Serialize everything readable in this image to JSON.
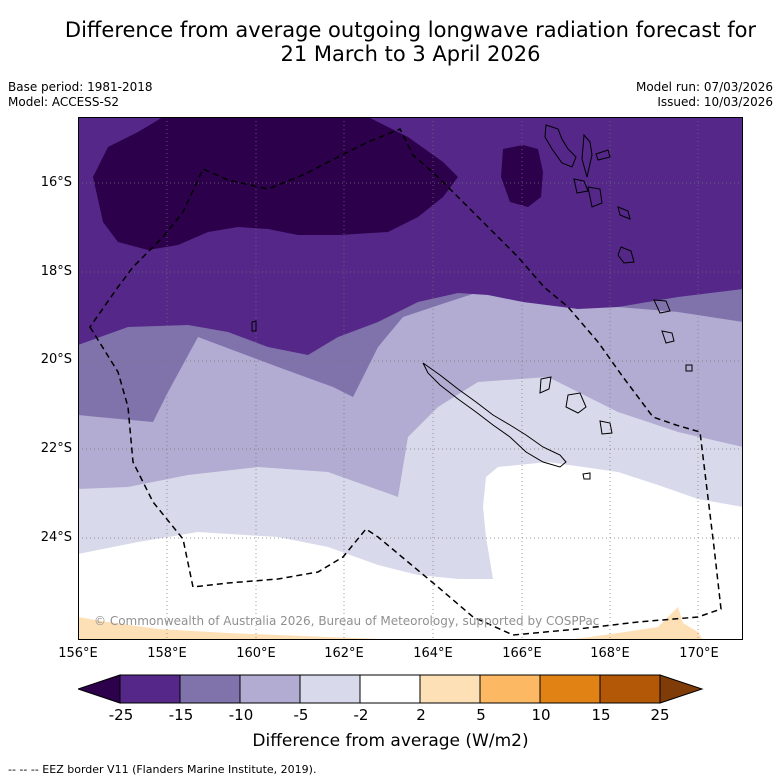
{
  "title_line1": "Difference from average outgoing longwave radiation forecast for",
  "title_line2": "21 March to 3 April 2026",
  "base_period": "Base period: 1981-2018",
  "model": "Model: ACCESS-S2",
  "model_run": "Model run: 07/03/2026",
  "issued": "Issued: 10/03/2026",
  "lat_labels": [
    "16°S",
    "18°S",
    "20°S",
    "22°S",
    "24°S"
  ],
  "lon_labels": [
    "156°E",
    "158°E",
    "160°E",
    "162°E",
    "164°E",
    "166°E",
    "168°E",
    "170°E"
  ],
  "copyright": "© Commonwealth of Australia 2026, Bureau of Meteorology, supported by COSPPac",
  "colorbar": {
    "ticks": [
      "-25",
      "-15",
      "-10",
      "-5",
      "-2",
      "2",
      "5",
      "10",
      "15",
      "25"
    ],
    "label": "Difference from average (W/m2)",
    "colors": [
      "#2d004b",
      "#542788",
      "#8073ac",
      "#b2abd2",
      "#d8daeb",
      "#ffffff",
      "#fee0b6",
      "#fdb863",
      "#e08214",
      "#b35806",
      "#7f3b08"
    ]
  },
  "eez_note": "--  --  -- EEZ border V11 (Flanders Marine Institute, 2019)."
}
